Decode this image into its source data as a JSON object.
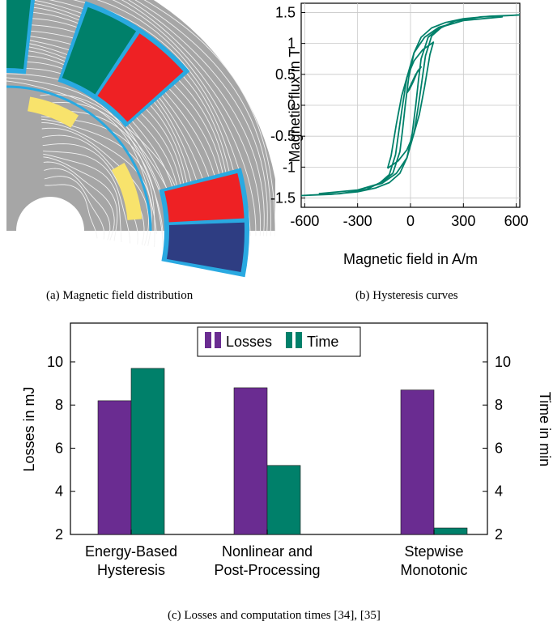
{
  "colors": {
    "stator": "#a6a6a6",
    "field_line": "#f2f2f2",
    "insulation": "#29a9e1",
    "coil_green": "#00806a",
    "coil_red": "#ee2124",
    "coil_navy": "#2e3d82",
    "magnet": "#f8e36c",
    "losses": "#6a2c91",
    "time": "#00806a"
  },
  "captions": {
    "a": "(a) Magnetic field distribution",
    "b": "(b) Hysteresis curves",
    "c": "(c) Losses and computation times [34], [35]"
  },
  "chart_data": [
    {
      "type": "line",
      "xlabel": "Magnetic field in A/m",
      "ylabel": "Magnetic flux in T",
      "xlim": [
        -620,
        620
      ],
      "ylim": [
        -1.65,
        1.65
      ],
      "xticks": [
        "-600",
        "-300",
        "0",
        "300",
        "600"
      ],
      "yticks": [
        "1.5",
        "1",
        "0.5",
        "0",
        "-0.5",
        "-1",
        "-1.5"
      ],
      "grid": true,
      "series": [
        {
          "loop": "major",
          "ascending": [
            [
              -620,
              -1.46
            ],
            [
              -400,
              -1.43
            ],
            [
              -250,
              -1.36
            ],
            [
              -150,
              -1.22
            ],
            [
              -100,
              -1.1
            ],
            [
              -60,
              -0.75
            ],
            [
              -45,
              -0.4
            ],
            [
              -30,
              0.0
            ],
            [
              -10,
              0.45
            ],
            [
              20,
              0.85
            ],
            [
              60,
              1.1
            ],
            [
              120,
              1.25
            ],
            [
              200,
              1.34
            ],
            [
              300,
              1.4
            ],
            [
              450,
              1.44
            ],
            [
              620,
              1.46
            ]
          ],
          "descending": [
            [
              620,
              1.46
            ],
            [
              400,
              1.43
            ],
            [
              250,
              1.36
            ],
            [
              150,
              1.22
            ],
            [
              100,
              1.1
            ],
            [
              60,
              0.75
            ],
            [
              45,
              0.4
            ],
            [
              30,
              0.0
            ],
            [
              10,
              -0.45
            ],
            [
              -20,
              -0.85
            ],
            [
              -60,
              -1.1
            ],
            [
              -120,
              -1.25
            ],
            [
              -200,
              -1.34
            ],
            [
              -300,
              -1.4
            ],
            [
              -450,
              -1.44
            ],
            [
              -620,
              -1.46
            ]
          ]
        },
        {
          "loop": "intermediate",
          "ascending": [
            [
              -520,
              -1.43
            ],
            [
              -300,
              -1.37
            ],
            [
              -180,
              -1.27
            ],
            [
              -120,
              -1.12
            ],
            [
              -85,
              -0.8
            ],
            [
              -65,
              -0.4
            ],
            [
              -45,
              0.0
            ],
            [
              -20,
              0.45
            ],
            [
              20,
              0.85
            ],
            [
              80,
              1.1
            ],
            [
              160,
              1.26
            ],
            [
              300,
              1.37
            ],
            [
              520,
              1.43
            ]
          ],
          "descending": [
            [
              520,
              1.43
            ],
            [
              300,
              1.37
            ],
            [
              180,
              1.27
            ],
            [
              120,
              1.12
            ],
            [
              85,
              0.8
            ],
            [
              65,
              0.4
            ],
            [
              45,
              0.0
            ],
            [
              20,
              -0.45
            ],
            [
              -20,
              -0.85
            ],
            [
              -80,
              -1.1
            ],
            [
              -160,
              -1.26
            ],
            [
              -300,
              -1.37
            ],
            [
              -520,
              -1.43
            ]
          ]
        },
        {
          "loop": "minor",
          "ascending": [
            [
              -130,
              -1.02
            ],
            [
              -110,
              -0.82
            ],
            [
              -80,
              -0.3
            ],
            [
              -50,
              0.15
            ],
            [
              -20,
              0.45
            ],
            [
              20,
              0.72
            ],
            [
              70,
              0.9
            ],
            [
              130,
              1.02
            ]
          ],
          "descending": [
            [
              130,
              1.02
            ],
            [
              110,
              0.82
            ],
            [
              80,
              0.3
            ],
            [
              50,
              -0.15
            ],
            [
              20,
              -0.45
            ],
            [
              -20,
              -0.72
            ],
            [
              -70,
              -0.9
            ],
            [
              -130,
              -1.02
            ]
          ]
        },
        {
          "loop": "inner",
          "ascending": [
            [
              -20,
              0.2
            ],
            [
              0,
              0.32
            ],
            [
              30,
              0.5
            ],
            [
              60,
              0.62
            ]
          ],
          "descending": [
            [
              60,
              0.62
            ],
            [
              40,
              0.55
            ],
            [
              15,
              0.38
            ],
            [
              -5,
              0.26
            ],
            [
              -20,
              0.2
            ]
          ]
        }
      ]
    },
    {
      "type": "bar",
      "categories": [
        [
          "Energy-Based",
          "Hysteresis"
        ],
        [
          "Nonlinear and",
          "Post-Processing"
        ],
        [
          "Stepwise",
          "Monotonic"
        ]
      ],
      "ylabel": "Losses in mJ",
      "y2label": "Time in min",
      "ylim": [
        2,
        11.8
      ],
      "yticks": [
        "2",
        "4",
        "6",
        "8",
        "10"
      ],
      "y2ticks": [
        "2",
        "4",
        "6",
        "8",
        "10"
      ],
      "legend_position": "top-center",
      "series": [
        {
          "name": "Losses",
          "axis": "left",
          "values": [
            8.2,
            8.8,
            8.7
          ]
        },
        {
          "name": "Time",
          "axis": "right",
          "values": [
            9.7,
            5.2,
            2.3
          ]
        }
      ]
    }
  ]
}
